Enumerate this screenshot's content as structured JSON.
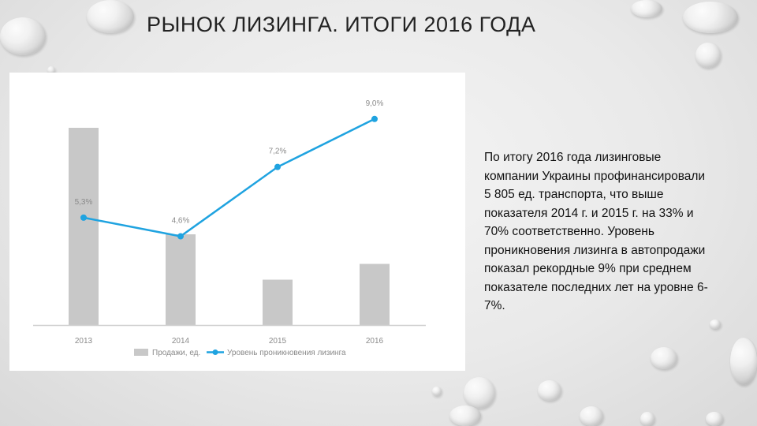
{
  "slide": {
    "title": "РЫНОК ЛИЗИНГА. ИТОГИ 2016 ГОДА",
    "body_lines": [
      "По итогу 2016 года лизинговые",
      "компании Украины профинансировали",
      "5 805 ед. транспорта, что выше",
      "показателя 2014 г. и 2015 г. на 33% и",
      "70% соответственно. Уровень",
      "проникновения лизинга в автопродажи",
      "показал рекордные 9% при среднем",
      "показателе последних лет на уровне 6-",
      "7%."
    ]
  },
  "chart_data": {
    "type": "bar+line",
    "categories": [
      "2013",
      "2014",
      "2015",
      "2016"
    ],
    "series": [
      {
        "name": "Продажи, ед.",
        "type": "bar",
        "relative_heights": [
          1.0,
          0.46,
          0.23,
          0.31
        ],
        "color": "#c8c8c8"
      },
      {
        "name": "Уровень проникновения лизинга",
        "type": "line",
        "values": [
          5.3,
          4.6,
          7.2,
          9.0
        ],
        "labels": [
          "5,3%",
          "4,6%",
          "7,2%",
          "9,0%"
        ],
        "color": "#1fa3e0"
      }
    ],
    "legend_position": "bottom-left",
    "grid": false,
    "axis_baseline": true
  }
}
